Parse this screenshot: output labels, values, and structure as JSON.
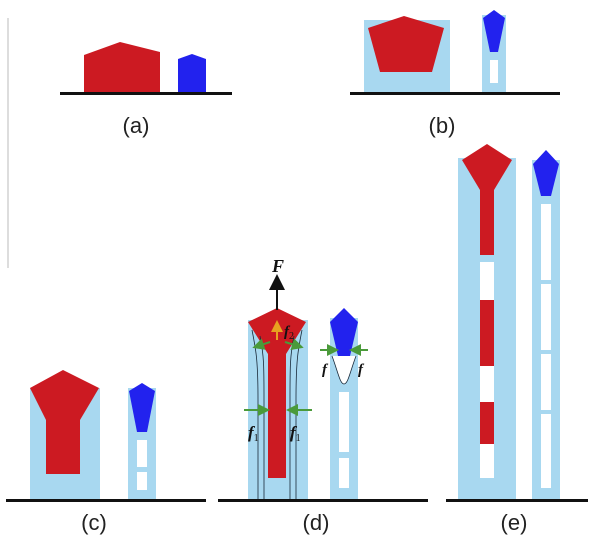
{
  "colors": {
    "red": "#cc1a22",
    "blue": "#2222ee",
    "light_blue": "#a8d8f0",
    "white": "#ffffff",
    "baseline": "#111111",
    "green_arrow": "#4a9a3a",
    "yellow_arrow": "#e8a020",
    "black_arrow": "#111111"
  },
  "panels": [
    {
      "id": "a",
      "label": "(a)"
    },
    {
      "id": "b",
      "label": "(b)"
    },
    {
      "id": "c",
      "label": "(c)"
    },
    {
      "id": "d",
      "label": "(d)"
    },
    {
      "id": "e",
      "label": "(e)"
    }
  ],
  "forces": {
    "F": "F",
    "f2_base": "f",
    "f2_sub": "2",
    "f1_base": "f",
    "f1_sub": "1",
    "f": "f"
  }
}
